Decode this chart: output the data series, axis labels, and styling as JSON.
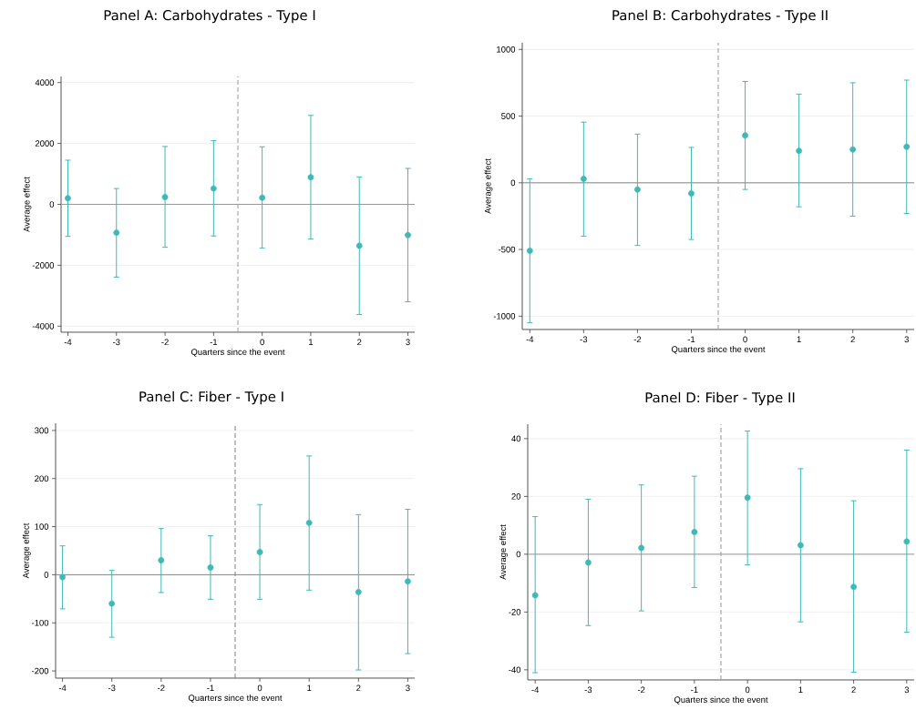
{
  "chart_data": [
    {
      "type": "scatter",
      "title": "Panel A: Carbohydrates - Type I",
      "xlabel": "Quarters since the event",
      "ylabel": "Average effect",
      "color": "#3fb8b8",
      "marker": "circle",
      "grid": "y",
      "x": [
        -4,
        -3,
        -2,
        -1,
        0,
        1,
        2,
        3
      ],
      "values": [
        200,
        -930,
        240,
        520,
        220,
        890,
        -1360,
        -1010
      ],
      "errors": [
        [
          -1050,
          1450
        ],
        [
          -2390,
          520
        ],
        [
          -1410,
          1900
        ],
        [
          -1040,
          2090
        ],
        [
          -1440,
          1890
        ],
        [
          -1140,
          2920
        ],
        [
          -3620,
          900
        ],
        [
          -3200,
          1180
        ]
      ],
      "xlim": [
        -4.14,
        3.14
      ],
      "ylim": [
        -4200,
        4200
      ],
      "xticks": [
        -4,
        -3,
        -2,
        -1,
        0,
        1,
        2,
        3
      ],
      "yticks": [
        -4000,
        -2000,
        0,
        2000,
        4000
      ],
      "ref_lines": [
        {
          "axis": "y",
          "value": 0,
          "color": "#999999",
          "line_style": "solid"
        },
        {
          "axis": "x",
          "value": -0.5,
          "color": "#a0a0a0",
          "line_style": "dashed"
        }
      ]
    },
    {
      "type": "scatter",
      "title": "Panel B: Carbohydrates - Type II",
      "xlabel": "Quarters since the event",
      "ylabel": "Average effect",
      "color": "#3fb8b8",
      "marker": "circle",
      "grid": "y",
      "x": [
        -4,
        -3,
        -2,
        -1,
        0,
        1,
        2,
        3
      ],
      "values": [
        -510,
        30,
        -50,
        -80,
        355,
        240,
        250,
        270
      ],
      "errors": [
        [
          -1050,
          30
        ],
        [
          -400,
          455
        ],
        [
          -470,
          365
        ],
        [
          -425,
          265
        ],
        [
          -50,
          760
        ],
        [
          -180,
          665
        ],
        [
          -250,
          750
        ],
        [
          -230,
          770
        ]
      ],
      "xlim": [
        -4.14,
        3.14
      ],
      "ylim": [
        -1100,
        1050
      ],
      "xticks": [
        -4,
        -3,
        -2,
        -1,
        0,
        1,
        2,
        3
      ],
      "yticks": [
        -1000,
        -500,
        0,
        500,
        1000
      ],
      "ref_lines": [
        {
          "axis": "y",
          "value": 0,
          "color": "#888888",
          "line_style": "solid"
        },
        {
          "axis": "x",
          "value": -0.5,
          "color": "#a0a0a0",
          "line_style": "dashed"
        }
      ]
    },
    {
      "type": "scatter",
      "title": "Panel C: Fiber - Type I",
      "xlabel": "Quarters since the event",
      "ylabel": "Average effect",
      "color": "#3fb8b8",
      "marker": "circle",
      "grid": "y",
      "x": [
        -4,
        -3,
        -2,
        -1,
        0,
        1,
        2,
        3
      ],
      "values": [
        -5,
        -60,
        30,
        15,
        47,
        108,
        -36,
        -14
      ],
      "errors": [
        [
          -71,
          60
        ],
        [
          -130,
          9
        ],
        [
          -37,
          96
        ],
        [
          -51,
          81
        ],
        [
          -51,
          146
        ],
        [
          -32,
          247
        ],
        [
          -198,
          125
        ],
        [
          -164,
          136
        ]
      ],
      "xlim": [
        -4.14,
        3.14
      ],
      "ylim": [
        -215,
        315
      ],
      "xticks": [
        -4,
        -3,
        -2,
        -1,
        0,
        1,
        2,
        3
      ],
      "yticks": [
        -200,
        -100,
        0,
        100,
        200,
        300
      ],
      "ref_lines": [
        {
          "axis": "y",
          "value": 0,
          "color": "#888888",
          "line_style": "solid"
        },
        {
          "axis": "x",
          "value": -0.5,
          "color": "#888888",
          "line_style": "dashed"
        }
      ]
    },
    {
      "type": "scatter",
      "title": "Panel D: Fiber - Type II",
      "xlabel": "Quarters since the event",
      "ylabel": "Average effect",
      "color": "#3fb8b8",
      "marker": "circle",
      "grid": "y",
      "x": [
        -4,
        -3,
        -2,
        -1,
        0,
        1,
        2,
        3
      ],
      "values": [
        -14.2,
        -2.9,
        2.2,
        7.7,
        19.6,
        3.1,
        -11.3,
        4.4
      ],
      "errors": [
        [
          -41,
          13
        ],
        [
          -24.7,
          19
        ],
        [
          -19.6,
          24
        ],
        [
          -11.5,
          27
        ],
        [
          -3.7,
          42.6
        ],
        [
          -23.4,
          29.6
        ],
        [
          -40.8,
          18.5
        ],
        [
          -27,
          36
        ]
      ],
      "xlim": [
        -4.14,
        3.14
      ],
      "ylim": [
        -43.5,
        45
      ],
      "xticks": [
        -4,
        -3,
        -2,
        -1,
        0,
        1,
        2,
        3
      ],
      "yticks": [
        -40,
        -20,
        0,
        20,
        40
      ],
      "ref_lines": [
        {
          "axis": "y",
          "value": 0,
          "color": "#999999",
          "line_style": "solid"
        },
        {
          "axis": "x",
          "value": -0.5,
          "color": "#a0a0a0",
          "line_style": "dashed"
        }
      ]
    }
  ]
}
